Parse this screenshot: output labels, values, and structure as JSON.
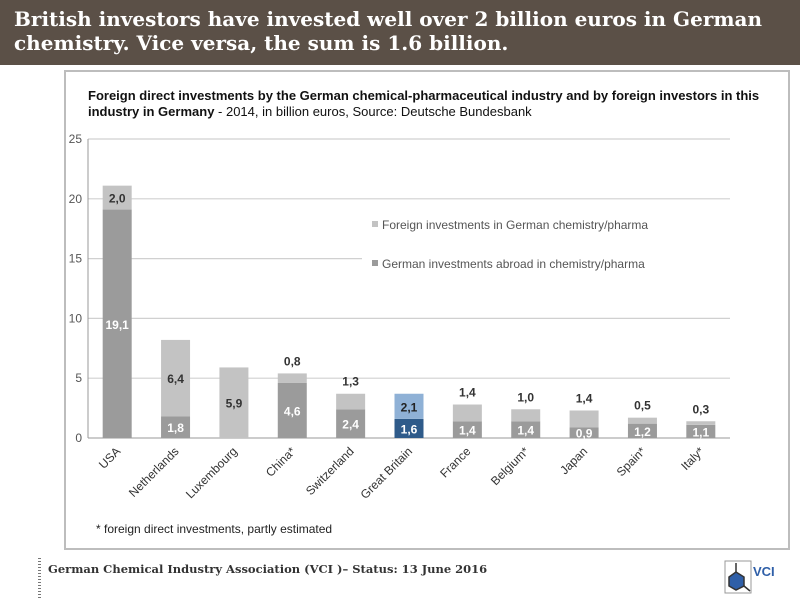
{
  "header": {
    "title": "British investors have invested well over 2 billion euros in German chemistry. Vice versa, the sum is 1.6 billion."
  },
  "chart_data": {
    "type": "bar",
    "stacked": true,
    "title_bold": "Foreign direct investments by the German chemical-pharmaceutical industry and by foreign investors in this industry in Germany",
    "title_rest": " - 2014, in billion euros, Source: Deutsche Bundesbank",
    "categories": [
      "USA",
      "Netherlands",
      "Luxembourg",
      "China*",
      "Switzerland",
      "Great Britain",
      "France",
      "Belgium*",
      "Japan",
      "Spain*",
      "Italy*"
    ],
    "series": [
      {
        "name": "German investments abroad in chemistry/pharma",
        "color": "#9b9b9b",
        "values": [
          19.1,
          1.8,
          null,
          4.6,
          2.4,
          1.6,
          1.4,
          1.4,
          0.9,
          1.2,
          1.1
        ],
        "labels": [
          "19,1",
          "1,8",
          "",
          "4,6",
          "2,4",
          "1,6",
          "1,4",
          "1,4",
          "0,9",
          "1,2",
          "1,1"
        ]
      },
      {
        "name": "Foreign investments in German chemistry/pharma",
        "color": "#c3c3c3",
        "values": [
          2.0,
          6.4,
          5.9,
          0.8,
          1.3,
          2.1,
          1.4,
          1.0,
          1.4,
          0.5,
          0.3
        ],
        "labels": [
          "2,0",
          "6,4",
          "5,9",
          "0,8",
          "1,3",
          "2,1",
          "1,4",
          "1,0",
          "1,4",
          "0,5",
          "0,3"
        ]
      }
    ],
    "highlight": {
      "category": "Great Britain",
      "colors": [
        "#2f5b8a",
        "#8fb1d6"
      ]
    },
    "ylim": [
      0,
      25
    ],
    "yticks": [
      0,
      5,
      10,
      15,
      20,
      25
    ],
    "grid": true,
    "legend": "center-right",
    "footnote": "* foreign direct investments, partly estimated"
  },
  "footer": {
    "text": "German Chemical Industry Association (VCI )– Status: 13 June 2016",
    "logo": "VCI"
  }
}
